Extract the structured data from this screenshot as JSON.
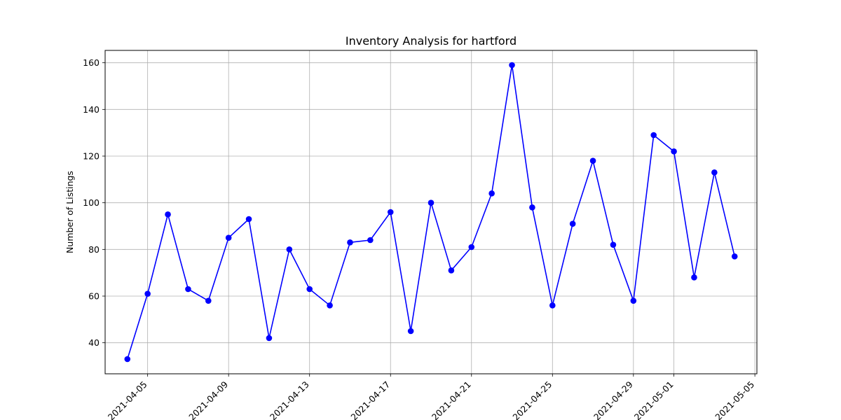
{
  "chart_data": {
    "type": "line",
    "title": "Inventory Analysis for hartford",
    "xlabel": "",
    "ylabel": "Number of Listings",
    "grid": true,
    "x": [
      "2021-04-04",
      "2021-04-05",
      "2021-04-06",
      "2021-04-07",
      "2021-04-08",
      "2021-04-09",
      "2021-04-10",
      "2021-04-11",
      "2021-04-12",
      "2021-04-13",
      "2021-04-14",
      "2021-04-15",
      "2021-04-16",
      "2021-04-17",
      "2021-04-18",
      "2021-04-19",
      "2021-04-20",
      "2021-04-21",
      "2021-04-22",
      "2021-04-23",
      "2021-04-24",
      "2021-04-25",
      "2021-04-26",
      "2021-04-27",
      "2021-04-28",
      "2021-04-29",
      "2021-04-30",
      "2021-05-01",
      "2021-05-02",
      "2021-05-03",
      "2021-05-04"
    ],
    "values": [
      33,
      61,
      95,
      63,
      58,
      85,
      93,
      42,
      80,
      63,
      56,
      83,
      84,
      96,
      45,
      100,
      71,
      81,
      104,
      159,
      98,
      56,
      91,
      118,
      82,
      58,
      129,
      122,
      68,
      113,
      77
    ],
    "xlim": [
      "2021-04-02.9",
      "2021-05-05.1"
    ],
    "ylim": [
      26.7,
      165.3
    ],
    "x_ticks": [
      "2021-04-05",
      "2021-04-09",
      "2021-04-13",
      "2021-04-17",
      "2021-04-21",
      "2021-04-25",
      "2021-04-29",
      "2021-05-01",
      "2021-05-05"
    ],
    "y_ticks": [
      40,
      60,
      80,
      100,
      120,
      140,
      160
    ],
    "line_color": "#0000ff",
    "marker_color": "#0000ff",
    "grid_color": "#b0b0b0"
  }
}
